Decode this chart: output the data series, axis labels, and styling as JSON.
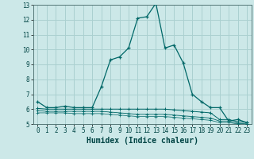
{
  "title": "",
  "xlabel": "Humidex (Indice chaleur)",
  "background_color": "#cce8e8",
  "grid_color": "#aad0d0",
  "line_color": "#006868",
  "xlim": [
    -0.5,
    23.5
  ],
  "ylim": [
    5,
    13
  ],
  "xticks": [
    0,
    1,
    2,
    3,
    4,
    5,
    6,
    7,
    8,
    9,
    10,
    11,
    12,
    13,
    14,
    15,
    16,
    17,
    18,
    19,
    20,
    21,
    22,
    23
  ],
  "yticks": [
    5,
    6,
    7,
    8,
    9,
    10,
    11,
    12,
    13
  ],
  "series1_x": [
    0,
    1,
    2,
    3,
    4,
    5,
    6,
    7,
    8,
    9,
    10,
    11,
    12,
    13,
    14,
    15,
    16,
    17,
    18,
    19,
    20,
    21,
    22,
    23
  ],
  "series1_y": [
    6.5,
    6.1,
    6.1,
    6.2,
    6.1,
    6.1,
    6.1,
    7.5,
    9.3,
    9.5,
    10.1,
    12.1,
    12.2,
    13.1,
    10.1,
    10.3,
    9.1,
    7.0,
    6.5,
    6.1,
    6.1,
    5.2,
    5.3,
    5.1
  ],
  "series2_x": [
    0,
    1,
    2,
    3,
    4,
    5,
    6,
    7,
    8,
    9,
    10,
    11,
    12,
    13,
    14,
    15,
    16,
    17,
    18,
    19,
    20,
    21,
    22,
    23
  ],
  "series2_y": [
    6.05,
    6.0,
    6.0,
    6.0,
    6.0,
    6.0,
    6.0,
    6.0,
    6.0,
    6.0,
    6.0,
    6.0,
    6.0,
    6.0,
    6.0,
    5.95,
    5.9,
    5.85,
    5.8,
    5.75,
    5.3,
    5.3,
    5.15,
    5.1
  ],
  "series3_x": [
    0,
    1,
    2,
    3,
    4,
    5,
    6,
    7,
    8,
    9,
    10,
    11,
    12,
    13,
    14,
    15,
    16,
    17,
    18,
    19,
    20,
    21,
    22,
    23
  ],
  "series3_y": [
    5.9,
    5.85,
    5.85,
    5.85,
    5.85,
    5.85,
    5.85,
    5.85,
    5.8,
    5.75,
    5.7,
    5.65,
    5.65,
    5.65,
    5.65,
    5.6,
    5.55,
    5.5,
    5.45,
    5.4,
    5.2,
    5.2,
    5.05,
    5.0
  ],
  "series4_x": [
    0,
    1,
    2,
    3,
    4,
    5,
    6,
    7,
    8,
    9,
    10,
    11,
    12,
    13,
    14,
    15,
    16,
    17,
    18,
    19,
    20,
    21,
    22,
    23
  ],
  "series4_y": [
    5.75,
    5.75,
    5.75,
    5.75,
    5.7,
    5.7,
    5.7,
    5.7,
    5.65,
    5.6,
    5.55,
    5.5,
    5.5,
    5.5,
    5.5,
    5.45,
    5.4,
    5.35,
    5.3,
    5.25,
    5.1,
    5.1,
    5.0,
    5.0
  ]
}
